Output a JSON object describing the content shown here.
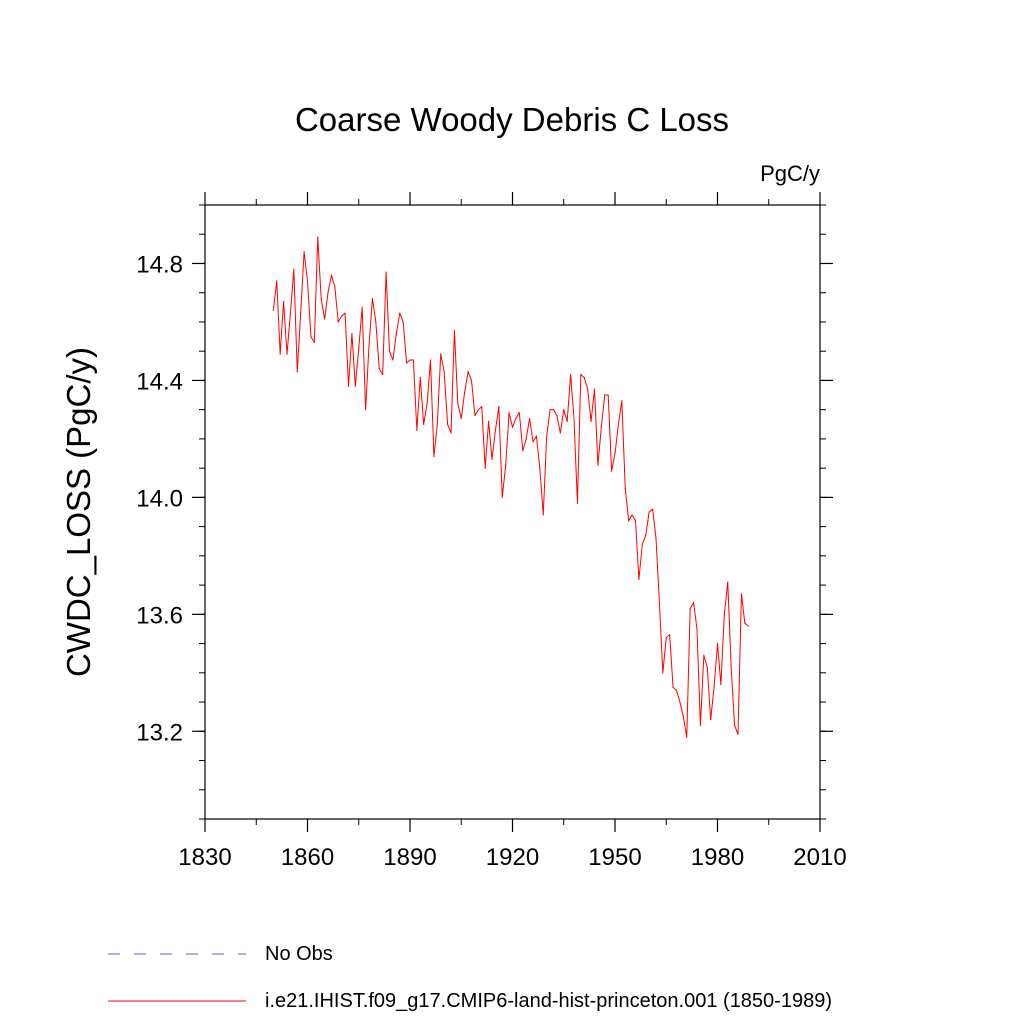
{
  "chart_data": {
    "type": "line",
    "title": "Coarse Woody Debris C Loss",
    "units": "PgC/y",
    "xlabel": "",
    "ylabel": "CWDC_LOSS  (PgC/y)",
    "xlim": [
      1830,
      2010
    ],
    "ylim": [
      12.9,
      15.0
    ],
    "xticks": [
      1830,
      1860,
      1890,
      1920,
      1950,
      1980,
      2010
    ],
    "xtick_labels": [
      "1830",
      "1860",
      "1890",
      "1920",
      "1950",
      "1980",
      "2010"
    ],
    "yticks": [
      13.2,
      13.6,
      14.0,
      14.4,
      14.8
    ],
    "ytick_labels": [
      "13.2",
      "13.6",
      "14.0",
      "14.4",
      "14.8"
    ],
    "grid": false,
    "legend_position": "bottom-left",
    "series": [
      {
        "name": "i.e21.IHIST.f09_g17.CMIP6-land-hist-princeton.001 (1850-1989)",
        "color": "#ff0000",
        "x": [
          1850,
          1851,
          1852,
          1853,
          1854,
          1855,
          1856,
          1857,
          1858,
          1859,
          1860,
          1861,
          1862,
          1863,
          1864,
          1865,
          1866,
          1867,
          1868,
          1869,
          1870,
          1871,
          1872,
          1873,
          1874,
          1875,
          1876,
          1877,
          1878,
          1879,
          1880,
          1881,
          1882,
          1883,
          1884,
          1885,
          1886,
          1887,
          1888,
          1889,
          1890,
          1891,
          1892,
          1893,
          1894,
          1895,
          1896,
          1897,
          1898,
          1899,
          1900,
          1901,
          1902,
          1903,
          1904,
          1905,
          1906,
          1907,
          1908,
          1909,
          1910,
          1911,
          1912,
          1913,
          1914,
          1915,
          1916,
          1917,
          1918,
          1919,
          1920,
          1921,
          1922,
          1923,
          1924,
          1925,
          1926,
          1927,
          1928,
          1929,
          1930,
          1931,
          1932,
          1933,
          1934,
          1935,
          1936,
          1937,
          1938,
          1939,
          1940,
          1941,
          1942,
          1943,
          1944,
          1945,
          1946,
          1947,
          1948,
          1949,
          1950,
          1951,
          1952,
          1953,
          1954,
          1955,
          1956,
          1957,
          1958,
          1959,
          1960,
          1961,
          1962,
          1963,
          1964,
          1965,
          1966,
          1967,
          1968,
          1969,
          1970,
          1971,
          1972,
          1973,
          1974,
          1975,
          1976,
          1977,
          1978,
          1979,
          1980,
          1981,
          1982,
          1983,
          1984,
          1985,
          1986,
          1987,
          1988,
          1989
        ],
        "values": [
          14.64,
          14.74,
          14.49,
          14.67,
          14.49,
          14.63,
          14.78,
          14.43,
          14.63,
          14.84,
          14.74,
          14.55,
          14.53,
          14.89,
          14.68,
          14.61,
          14.7,
          14.76,
          14.72,
          14.6,
          14.62,
          14.63,
          14.38,
          14.56,
          14.38,
          14.51,
          14.65,
          14.3,
          14.52,
          14.68,
          14.6,
          14.44,
          14.42,
          14.77,
          14.5,
          14.47,
          14.56,
          14.63,
          14.6,
          14.46,
          14.47,
          14.47,
          14.23,
          14.41,
          14.25,
          14.32,
          14.47,
          14.14,
          14.25,
          14.49,
          14.43,
          14.25,
          14.22,
          14.57,
          14.32,
          14.27,
          14.36,
          14.43,
          14.4,
          14.28,
          14.3,
          14.31,
          14.1,
          14.26,
          14.13,
          14.23,
          14.31,
          14.0,
          14.11,
          14.29,
          14.24,
          14.27,
          14.29,
          14.16,
          14.2,
          14.27,
          14.19,
          14.21,
          14.1,
          13.94,
          14.21,
          14.3,
          14.3,
          14.28,
          14.22,
          14.3,
          14.26,
          14.42,
          14.27,
          13.98,
          14.42,
          14.41,
          14.37,
          14.26,
          14.37,
          14.11,
          14.24,
          14.35,
          14.35,
          14.09,
          14.15,
          14.25,
          14.33,
          14.03,
          13.92,
          13.94,
          13.92,
          13.72,
          13.84,
          13.87,
          13.95,
          13.96,
          13.86,
          13.64,
          13.4,
          13.52,
          13.53,
          13.35,
          13.34,
          13.3,
          13.25,
          13.18,
          13.62,
          13.64,
          13.55,
          13.22,
          13.46,
          13.42,
          13.24,
          13.35,
          13.5,
          13.36,
          13.6,
          13.71,
          13.42,
          13.22,
          13.19,
          13.67,
          13.57,
          13.56
        ]
      }
    ]
  },
  "legend": {
    "items": [
      {
        "label": "No Obs",
        "color": "#6f5fbf",
        "style": "dashed"
      },
      {
        "label": "i.e21.IHIST.f09_g17.CMIP6-land-hist-princeton.001 (1850-1989)",
        "color": "#ff0000",
        "style": "solid"
      }
    ]
  }
}
